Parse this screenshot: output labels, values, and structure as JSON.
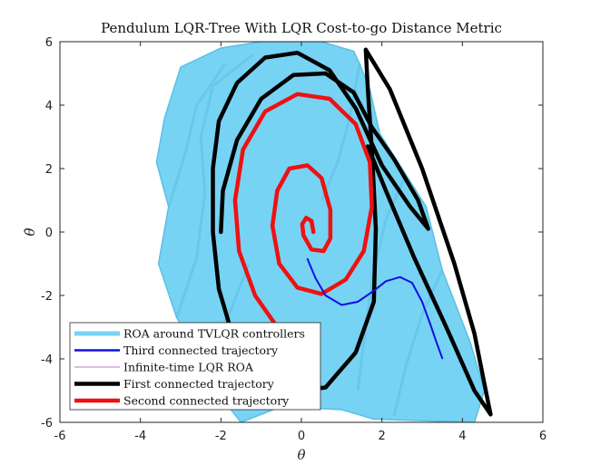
{
  "chart_data": {
    "type": "line",
    "title": "Pendulum LQR-Tree With LQR Cost-to-go Distance Metric",
    "xlabel": "θ",
    "ylabel": "θ̇",
    "xlim": [
      -6,
      6
    ],
    "ylim": [
      -6,
      6
    ],
    "xticks": [
      "-6",
      "-4",
      "-2",
      "0",
      "2",
      "4",
      "6"
    ],
    "yticks": [
      "-6",
      "-4",
      "-2",
      "0",
      "2",
      "4",
      "6"
    ],
    "grid": false,
    "legend_position": "bottom-left",
    "colors": {
      "roa": "#77d3f3",
      "roa_edge": "#5bbfe3",
      "third": "#1010e0",
      "infinite": "#c070d0",
      "first": "#000000",
      "second": "#ee1111"
    },
    "series": [
      {
        "name": "ROA around TVLQR controllers",
        "style": "filled-region",
        "points": [
          [
            1.8,
            -5.9
          ],
          [
            1.0,
            -5.6
          ],
          [
            -0.5,
            -5.5
          ],
          [
            -1.5,
            -6.0
          ],
          [
            -2.0,
            -5.2
          ],
          [
            -2.5,
            -4.0
          ],
          [
            -3.1,
            -2.7
          ],
          [
            -3.55,
            -1.0
          ],
          [
            -3.3,
            0.8
          ],
          [
            -3.6,
            2.2
          ],
          [
            -3.4,
            3.6
          ],
          [
            -3.0,
            5.2
          ],
          [
            -2.5,
            5.5
          ],
          [
            -2.0,
            5.8
          ],
          [
            -1.0,
            6.0
          ],
          [
            0.5,
            6.0
          ],
          [
            1.3,
            5.7
          ],
          [
            1.45,
            5.3
          ],
          [
            1.7,
            4.5
          ],
          [
            1.95,
            3.1
          ],
          [
            2.6,
            1.8
          ],
          [
            3.1,
            0.8
          ],
          [
            3.5,
            -1.2
          ],
          [
            4.2,
            -3.5
          ],
          [
            4.55,
            -5.0
          ],
          [
            4.3,
            -6.0
          ]
        ]
      },
      {
        "name": "Third connected trajectory",
        "points": [
          [
            0.15,
            -0.85
          ],
          [
            0.35,
            -1.45
          ],
          [
            0.6,
            -2.0
          ],
          [
            1.0,
            -2.3
          ],
          [
            1.4,
            -2.2
          ],
          [
            1.8,
            -1.85
          ],
          [
            2.1,
            -1.55
          ],
          [
            2.45,
            -1.42
          ],
          [
            2.75,
            -1.6
          ],
          [
            3.0,
            -2.2
          ],
          [
            3.2,
            -2.9
          ],
          [
            3.35,
            -3.45
          ],
          [
            3.5,
            -3.98
          ]
        ]
      },
      {
        "name": "Infinite-time LQR ROA",
        "points": []
      },
      {
        "name": "First connected trajectory",
        "points": [
          [
            -2.0,
            0.0
          ],
          [
            -1.95,
            1.3
          ],
          [
            -1.6,
            2.9
          ],
          [
            -1.0,
            4.2
          ],
          [
            -0.2,
            4.95
          ],
          [
            0.6,
            5.0
          ],
          [
            1.3,
            4.4
          ],
          [
            1.75,
            3.3
          ],
          [
            2.3,
            2.3
          ],
          [
            2.9,
            1.0
          ],
          [
            3.15,
            0.1
          ],
          [
            2.7,
            0.8
          ],
          [
            2.0,
            2.1
          ],
          [
            1.35,
            3.9
          ],
          [
            0.7,
            5.1
          ],
          [
            -0.1,
            5.65
          ],
          [
            -0.9,
            5.5
          ],
          [
            -1.6,
            4.7
          ],
          [
            -2.05,
            3.5
          ],
          [
            -2.2,
            2.0
          ],
          [
            -2.2,
            0.0
          ],
          [
            -2.05,
            -1.8
          ],
          [
            -1.7,
            -3.3
          ],
          [
            -1.1,
            -4.4
          ],
          [
            -0.3,
            -5.05
          ],
          [
            0.6,
            -4.9
          ],
          [
            1.35,
            -3.8
          ],
          [
            1.8,
            -2.2
          ],
          [
            1.85,
            0.1
          ],
          [
            1.75,
            2.6
          ],
          [
            1.65,
            4.5
          ],
          [
            1.6,
            5.75
          ],
          [
            2.2,
            4.5
          ],
          [
            3.0,
            2.0
          ],
          [
            3.8,
            -1.0
          ],
          [
            4.3,
            -3.2
          ],
          [
            4.55,
            -4.8
          ],
          [
            4.7,
            -5.75
          ],
          [
            4.3,
            -5.0
          ],
          [
            3.6,
            -3.0
          ],
          [
            2.8,
            -0.8
          ],
          [
            2.1,
            1.3
          ],
          [
            1.65,
            2.7
          ]
        ]
      },
      {
        "name": "Second connected trajectory",
        "points": [
          [
            0.3,
            0.0
          ],
          [
            0.25,
            0.35
          ],
          [
            0.12,
            0.45
          ],
          [
            0.02,
            0.25
          ],
          [
            0.05,
            -0.1
          ],
          [
            0.25,
            -0.55
          ],
          [
            0.55,
            -0.6
          ],
          [
            0.72,
            -0.2
          ],
          [
            0.72,
            0.7
          ],
          [
            0.5,
            1.7
          ],
          [
            0.15,
            2.1
          ],
          [
            -0.3,
            2.0
          ],
          [
            -0.6,
            1.3
          ],
          [
            -0.72,
            0.2
          ],
          [
            -0.55,
            -1.0
          ],
          [
            -0.1,
            -1.75
          ],
          [
            0.5,
            -1.95
          ],
          [
            1.1,
            -1.5
          ],
          [
            1.55,
            -0.6
          ],
          [
            1.75,
            0.8
          ],
          [
            1.7,
            2.2
          ],
          [
            1.35,
            3.4
          ],
          [
            0.7,
            4.2
          ],
          [
            -0.1,
            4.35
          ],
          [
            -0.9,
            3.8
          ],
          [
            -1.45,
            2.6
          ],
          [
            -1.65,
            1.0
          ],
          [
            -1.55,
            -0.6
          ],
          [
            -1.15,
            -2.0
          ],
          [
            -0.6,
            -3.0
          ],
          [
            -0.15,
            -3.4
          ]
        ]
      }
    ]
  }
}
